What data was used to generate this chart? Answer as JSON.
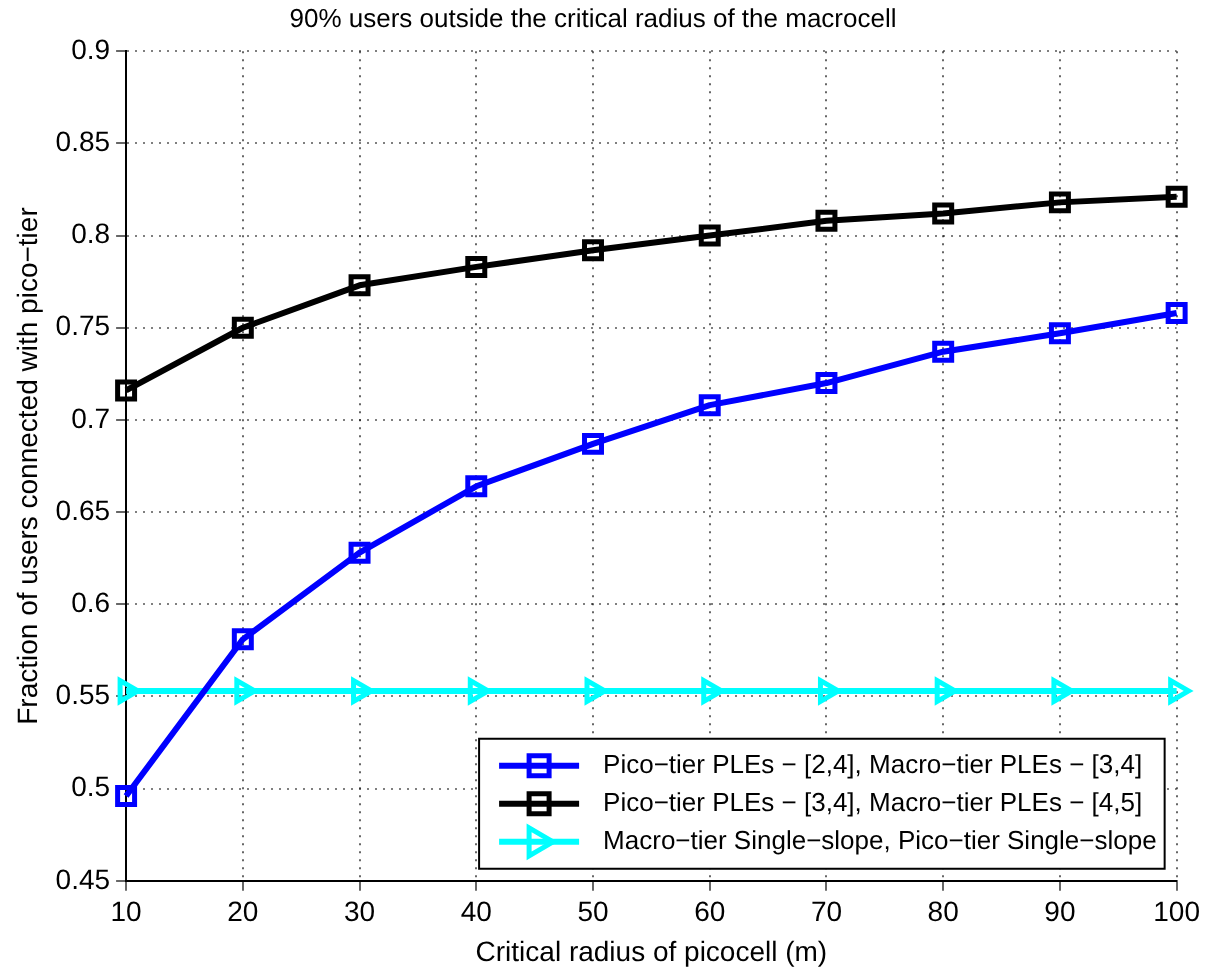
{
  "chart_data": {
    "type": "line",
    "title": "90% users outside the critical radius of the macrocell",
    "xlabel": "Critical radius of picocell (m)",
    "ylabel": "Fraction of users connected with pico−tier",
    "x": [
      10,
      20,
      30,
      40,
      50,
      60,
      70,
      80,
      90,
      100
    ],
    "series": [
      {
        "name": "Pico−tier PLEs − [2,4], Macro−tier PLEs − [3,4]",
        "color": "#0000ff",
        "marker": "square",
        "values": [
          0.496,
          0.581,
          0.628,
          0.664,
          0.687,
          0.708,
          0.72,
          0.737,
          0.747,
          0.758
        ]
      },
      {
        "name": "Pico−tier PLEs − [3,4], Macro−tier PLEs − [4,5]",
        "color": "#000000",
        "marker": "square",
        "values": [
          0.716,
          0.75,
          0.773,
          0.783,
          0.792,
          0.8,
          0.808,
          0.812,
          0.818,
          0.821
        ]
      },
      {
        "name": "Macro−tier Single−slope, Pico−tier Single−slope",
        "color": "#00ffff",
        "marker": "triangle",
        "values": [
          0.553,
          0.553,
          0.553,
          0.553,
          0.553,
          0.553,
          0.553,
          0.553,
          0.553,
          0.553
        ]
      }
    ],
    "xlim": [
      10,
      100
    ],
    "xticks": [
      10,
      20,
      30,
      40,
      50,
      60,
      70,
      80,
      90,
      100
    ],
    "ylim": [
      0.45,
      0.9
    ],
    "yticks": [
      0.45,
      0.5,
      0.55,
      0.6,
      0.65,
      0.7,
      0.75,
      0.8,
      0.85,
      0.9
    ],
    "grid": true,
    "legend": "bottom right",
    "line_style": "solid"
  }
}
